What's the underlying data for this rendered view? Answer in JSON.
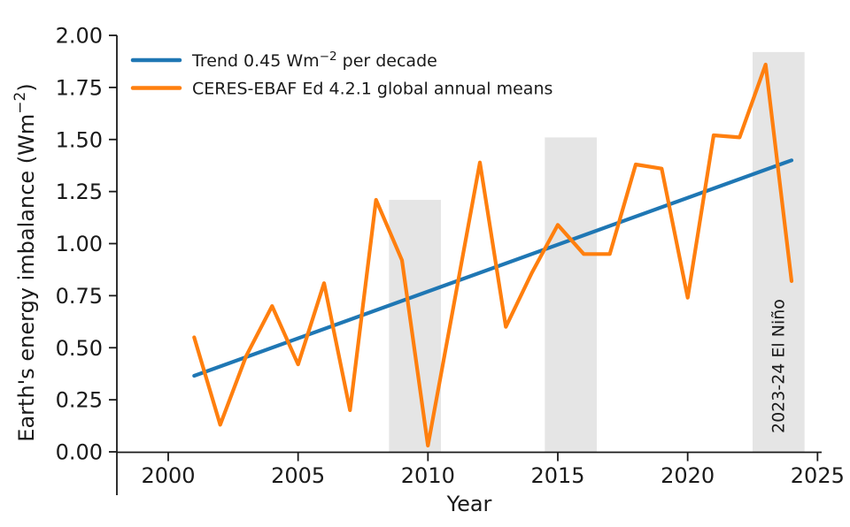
{
  "figure": {
    "background": "#ffffff",
    "text_color": "#1a1a1a"
  },
  "chart_data": {
    "type": "line",
    "title": "",
    "xlabel": "Year",
    "ylabel": {
      "pre": "Earth's energy imbalance (Wm",
      "sup": "−2",
      "post": ")"
    },
    "grid": false,
    "xlim": [
      1998,
      2025.2
    ],
    "ylim": [
      0,
      2.0
    ],
    "x_ticks": [
      2000,
      2005,
      2010,
      2015,
      2020,
      2025
    ],
    "y_ticks": [
      "0.00",
      "0.25",
      "0.50",
      "0.75",
      "1.00",
      "1.25",
      "1.50",
      "1.75",
      "2.00"
    ],
    "legend": {
      "position": "upper-left",
      "entries": [
        {
          "series": "trend",
          "color": "#1f77b4",
          "label": {
            "pre": "Trend 0.45 Wm",
            "sup": "−2",
            "post": " per decade"
          }
        },
        {
          "series": "ceres",
          "color": "#ff7f0e",
          "label": {
            "pre": "CERES-EBAF Ed 4.2.1 global annual means",
            "sup": "",
            "post": ""
          }
        }
      ]
    },
    "series": [
      {
        "name": "trend",
        "color": "#1f77b4",
        "x": [
          2001,
          2024
        ],
        "y": [
          0.365,
          1.4
        ]
      },
      {
        "name": "ceres",
        "color": "#ff7f0e",
        "x": [
          2001,
          2002,
          2003,
          2004,
          2005,
          2006,
          2007,
          2008,
          2009,
          2010,
          2011,
          2012,
          2013,
          2014,
          2015,
          2016,
          2017,
          2018,
          2019,
          2020,
          2021,
          2022,
          2023,
          2024
        ],
        "y": [
          0.55,
          0.13,
          0.46,
          0.7,
          0.42,
          0.81,
          0.2,
          1.21,
          0.92,
          0.03,
          0.71,
          1.39,
          0.6,
          0.86,
          1.09,
          0.95,
          0.95,
          1.38,
          1.36,
          0.74,
          1.52,
          1.51,
          1.86,
          0.82
        ]
      }
    ],
    "annotations": {
      "band_color": "#e5e5e5",
      "band_label_color": "#b3b3b3",
      "el_nino_bands": [
        {
          "x_from": 2008.5,
          "x_to": 2010.5,
          "top": 1.21,
          "label": ""
        },
        {
          "x_from": 2014.5,
          "x_to": 2016.5,
          "top": 1.51,
          "label": ""
        },
        {
          "x_from": 2022.5,
          "x_to": 2024.5,
          "top": 1.92,
          "label": "2023-24 El Niño"
        }
      ]
    }
  }
}
